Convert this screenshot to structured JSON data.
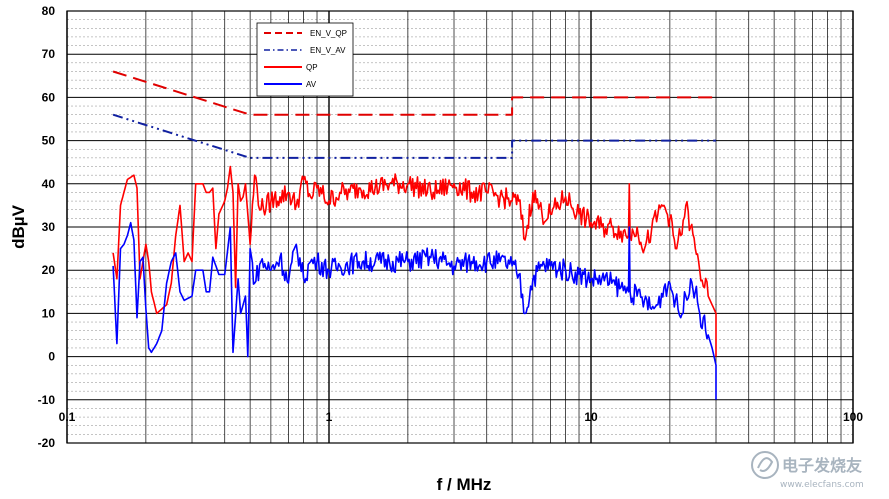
{
  "chart_data": {
    "type": "line",
    "title": "",
    "xlabel": "f / MHz",
    "ylabel": "dBµV",
    "xscale": "log",
    "xlim": [
      0.1,
      100
    ],
    "ylim": [
      -20,
      80
    ],
    "xticks": [
      {
        "value": 0.1,
        "label": "0.1"
      },
      {
        "value": 1,
        "label": "1"
      },
      {
        "value": 10,
        "label": "10"
      },
      {
        "value": 100,
        "label": "100"
      }
    ],
    "yticks": [
      {
        "value": 80,
        "label": "80"
      },
      {
        "value": 70,
        "label": "70"
      },
      {
        "value": 60,
        "label": "60"
      },
      {
        "value": 50,
        "label": "50"
      },
      {
        "value": 40,
        "label": "40"
      },
      {
        "value": 30,
        "label": "30"
      },
      {
        "value": 20,
        "label": "20"
      },
      {
        "value": 10,
        "label": "10"
      },
      {
        "value": 0,
        "label": "0"
      },
      {
        "value": -10,
        "label": "-10"
      },
      {
        "value": -20,
        "label": "-20"
      }
    ],
    "grid": true,
    "legend_position": "top-left",
    "series": [
      {
        "name": "EN_V_QP",
        "style": "dashed",
        "color": "#e00000",
        "x": [
          0.15,
          0.5,
          0.5,
          5,
          5,
          30
        ],
        "y": [
          66,
          56,
          56,
          56,
          60,
          60
        ]
      },
      {
        "name": "EN_V_AV",
        "style": "dashdot",
        "color": "#1020a0",
        "x": [
          0.15,
          0.5,
          0.5,
          5,
          5,
          30
        ],
        "y": [
          56,
          46,
          46,
          46,
          50,
          50
        ]
      },
      {
        "name": "QP",
        "style": "solid",
        "color": "#ff0000",
        "x": [
          0.15,
          0.155,
          0.16,
          0.17,
          0.18,
          0.185,
          0.19,
          0.2,
          0.205,
          0.21,
          0.22,
          0.24,
          0.25,
          0.26,
          0.27,
          0.28,
          0.29,
          0.3,
          0.31,
          0.33,
          0.34,
          0.35,
          0.36,
          0.37,
          0.38,
          0.4,
          0.41,
          0.42,
          0.43,
          0.44,
          0.45,
          0.46,
          0.47,
          0.48,
          0.5,
          0.52,
          0.55,
          0.6,
          0.65,
          0.7,
          0.75,
          0.8,
          0.85,
          0.9,
          1.0,
          1.1,
          1.2,
          1.3,
          1.5,
          1.7,
          2,
          2.5,
          3,
          3.5,
          4,
          4.5,
          5,
          5.3,
          5.6,
          6,
          6.5,
          7,
          8,
          9,
          10,
          11,
          12,
          13,
          13.9,
          14,
          14.1,
          15,
          16,
          17,
          18,
          19,
          20,
          21,
          22,
          23,
          24,
          25,
          26,
          28,
          29,
          30,
          30
        ],
        "y": [
          24,
          18,
          35,
          41,
          42,
          39,
          18,
          26,
          22,
          15,
          10,
          12,
          17,
          28,
          35,
          22,
          24,
          22,
          40,
          40,
          38,
          38,
          39,
          25,
          33,
          36,
          39,
          44,
          38,
          16,
          40,
          36,
          37,
          40,
          26,
          42,
          34,
          36,
          37,
          38,
          35,
          41,
          37,
          39,
          36,
          38,
          38,
          39,
          39,
          40,
          40,
          38,
          40,
          38,
          38,
          37,
          36,
          36,
          27,
          38,
          33,
          33,
          37,
          33,
          31,
          30,
          30,
          29,
          28,
          40,
          28,
          30,
          25,
          29,
          33,
          35,
          32,
          25,
          28,
          35,
          30,
          25,
          20,
          14,
          12,
          10,
          0
        ]
      },
      {
        "name": "AV",
        "style": "solid",
        "color": "#0000ff",
        "x": [
          0.15,
          0.155,
          0.16,
          0.165,
          0.17,
          0.175,
          0.18,
          0.185,
          0.19,
          0.195,
          0.2,
          0.205,
          0.21,
          0.22,
          0.23,
          0.24,
          0.25,
          0.26,
          0.27,
          0.28,
          0.3,
          0.31,
          0.33,
          0.34,
          0.35,
          0.36,
          0.37,
          0.38,
          0.4,
          0.42,
          0.43,
          0.45,
          0.46,
          0.48,
          0.49,
          0.5,
          0.52,
          0.55,
          0.6,
          0.65,
          0.7,
          0.75,
          0.8,
          0.85,
          0.9,
          1.0,
          1.1,
          1.3,
          1.5,
          1.7,
          2,
          2.5,
          3,
          3.5,
          4,
          4.5,
          5,
          5.3,
          5.6,
          6,
          6.5,
          7,
          8,
          9,
          10,
          11,
          12,
          13,
          13.9,
          14,
          14.1,
          15,
          16,
          17,
          18,
          19,
          20,
          21,
          22,
          23,
          24,
          25,
          26,
          28,
          29,
          30,
          30
        ],
        "y": [
          21,
          3,
          25,
          26,
          28,
          31,
          27,
          9,
          22,
          23,
          11,
          2,
          1,
          3,
          6,
          17,
          22,
          24,
          15,
          13,
          14,
          20,
          20,
          15,
          15,
          23,
          21,
          19,
          19,
          30,
          1,
          18,
          10,
          14,
          0,
          25,
          17,
          22,
          20,
          23,
          17,
          26,
          18,
          22,
          22,
          20,
          21,
          22,
          22,
          22,
          22,
          23,
          21,
          22,
          22,
          22,
          21,
          19,
          10,
          18,
          21,
          21,
          20,
          19,
          18,
          18,
          17,
          16,
          15,
          30,
          15,
          14,
          13,
          11,
          12,
          16,
          17,
          13,
          9,
          14,
          18,
          15,
          10,
          5,
          2,
          -2,
          -10
        ]
      }
    ]
  },
  "legend": {
    "items": [
      "EN_V_QP",
      "EN_V_AV",
      "QP",
      "AV"
    ]
  },
  "watermark": {
    "text": "电子发烧友",
    "url": "www.elecfans.com"
  }
}
